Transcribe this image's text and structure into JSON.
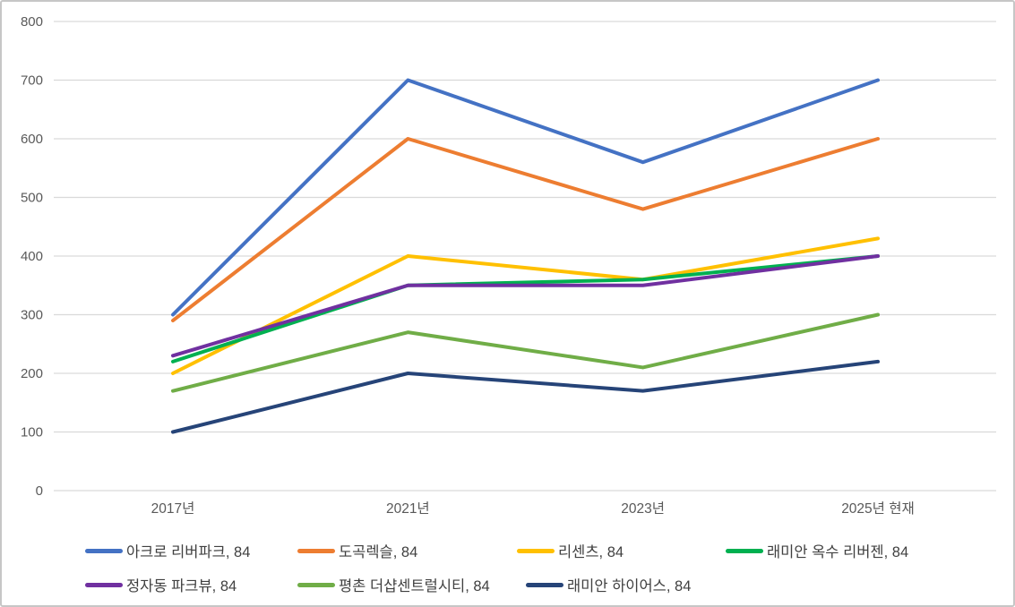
{
  "chart_data": {
    "type": "line",
    "title": "",
    "xlabel": "",
    "ylabel": "",
    "categories": [
      "2017년",
      "2021년",
      "2023년",
      "2025년 현재"
    ],
    "series": [
      {
        "name": "아크로 리버파크, 84",
        "color": "#4472C4",
        "values": [
          300,
          700,
          560,
          700
        ]
      },
      {
        "name": "도곡렉슬, 84",
        "color": "#ED7D31",
        "values": [
          290,
          600,
          480,
          600
        ]
      },
      {
        "name": "리센츠, 84",
        "color": "#FFC000",
        "values": [
          200,
          400,
          360,
          430
        ]
      },
      {
        "name": "래미안 옥수 리버젠, 84",
        "color": "#00B050",
        "values": [
          220,
          350,
          360,
          400
        ]
      },
      {
        "name": "정자동 파크뷰, 84",
        "color": "#7030A0",
        "values": [
          230,
          350,
          350,
          400
        ]
      },
      {
        "name": "평촌 더샵센트럴시티, 84",
        "color": "#70AD47",
        "values": [
          170,
          270,
          210,
          300
        ]
      },
      {
        "name": "래미안 하이어스, 84",
        "color": "#264478",
        "values": [
          100,
          200,
          170,
          220
        ]
      }
    ],
    "ylim": [
      0,
      800
    ],
    "ytick_step": 100,
    "yticks": [
      0,
      100,
      200,
      300,
      400,
      500,
      600,
      700,
      800
    ],
    "grid": true,
    "grid_color": "#D9D9D9",
    "tick_label_color": "#595959",
    "legend_position": "bottom",
    "legend_text_color": "#404040"
  }
}
